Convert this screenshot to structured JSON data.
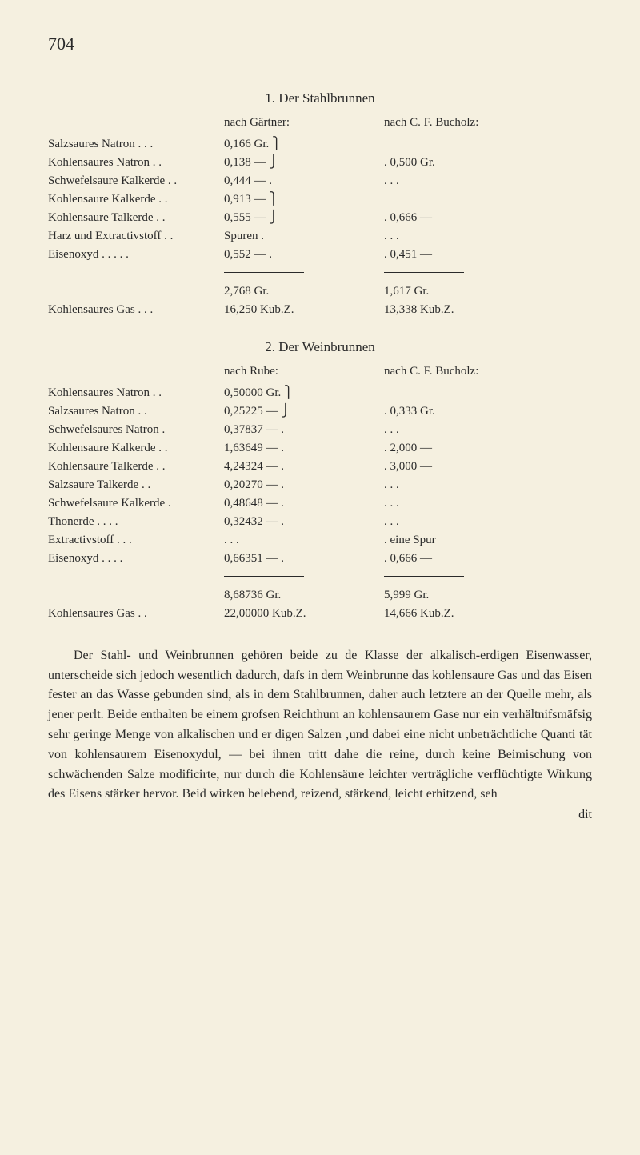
{
  "page_number": "704",
  "section1": {
    "title": "1. Der Stahlbrunnen",
    "col1_header": "nach Gärtner:",
    "col2_header": "nach C. F. Bucholz:",
    "rows": [
      {
        "label": "Salzsaures Natron . . .",
        "val1": "0,166 Gr. ⎫",
        "val2": ""
      },
      {
        "label": "Kohlensaures Natron . .",
        "val1": "0,138 — ⎭",
        "val2": ". 0,500 Gr."
      },
      {
        "label": "Schwefelsaure Kalkerde . .",
        "val1": "0,444 — .",
        "val2": ". . ."
      },
      {
        "label": "Kohlensaure Kalkerde . .",
        "val1": "0,913 — ⎫",
        "val2": ""
      },
      {
        "label": "Kohlensaure Talkerde . .",
        "val1": "0,555 — ⎭",
        "val2": ". 0,666 —"
      },
      {
        "label": "Harz und Extractivstoff . .",
        "val1": "Spuren .",
        "val2": ". . ."
      },
      {
        "label": "Eisenoxyd . . . . .",
        "val1": "0,552 — .",
        "val2": ". 0,451 —"
      }
    ],
    "total": {
      "label": "Kohlensaures Gas . . .",
      "val1_a": "2,768 Gr.",
      "val1_b": "16,250 Kub.Z.",
      "val2_a": "1,617 Gr.",
      "val2_b": "13,338 Kub.Z."
    }
  },
  "section2": {
    "title": "2. Der Weinbrunnen",
    "col1_header": "nach Rube:",
    "col2_header": "nach C. F. Bucholz:",
    "rows": [
      {
        "label": "Kohlensaures Natron . .",
        "val1": "0,50000 Gr. ⎫",
        "val2": ""
      },
      {
        "label": "Salzsaures Natron . .",
        "val1": "0,25225 — ⎭",
        "val2": ". 0,333 Gr."
      },
      {
        "label": "Schwefelsaures Natron .",
        "val1": "0,37837 — .",
        "val2": ". . ."
      },
      {
        "label": "Kohlensaure Kalkerde . .",
        "val1": "1,63649 — .",
        "val2": ". 2,000 —"
      },
      {
        "label": "Kohlensaure Talkerde . .",
        "val1": "4,24324 — .",
        "val2": ". 3,000 —"
      },
      {
        "label": "Salzsaure Talkerde . .",
        "val1": "0,20270 — .",
        "val2": ". . ."
      },
      {
        "label": "Schwefelsaure Kalkerde .",
        "val1": "0,48648 — .",
        "val2": ". . ."
      },
      {
        "label": "Thonerde . . . .",
        "val1": "0,32432 — .",
        "val2": ". . ."
      },
      {
        "label": "Extractivstoff . . .",
        "val1": ". . .",
        "val2": ". eine Spur"
      },
      {
        "label": "Eisenoxyd . . . .",
        "val1": "0,66351 — .",
        "val2": ". 0,666 —"
      }
    ],
    "total": {
      "label": "Kohlensaures Gas . .",
      "val1_a": "8,68736 Gr.",
      "val1_b": "22,00000 Kub.Z.",
      "val2_a": "5,999 Gr.",
      "val2_b": "14,666 Kub.Z."
    }
  },
  "body": {
    "text": "Der Stahl- und Weinbrunnen gehören beide zu de Klasse der alkalisch-erdigen Eisenwasser, unterscheide sich jedoch wesentlich dadurch, dafs in dem Weinbrunne das kohlensaure Gas und das Eisen fester an das Wasse gebunden sind, als in dem Stahlbrunnen, daher auch letztere an der Quelle mehr, als jener perlt. Beide enthalten be einem grofsen Reichthum an kohlensaurem Gase nur ein verhältnifsmäfsig sehr geringe Menge von alkalischen und er digen Salzen ‚und dabei eine nicht unbeträchtliche Quanti tät von kohlensaurem Eisenoxydul, — bei ihnen tritt dahe die reine, durch keine Beimischung von schwächenden Salze modificirte, nur durch die Kohlensäure leichter verträgliche verflüchtigte Wirkung des Eisens stärker hervor. Beid wirken belebend, reizend, stärkend, leicht erhitzend, seh"
  },
  "trailing": "dit"
}
